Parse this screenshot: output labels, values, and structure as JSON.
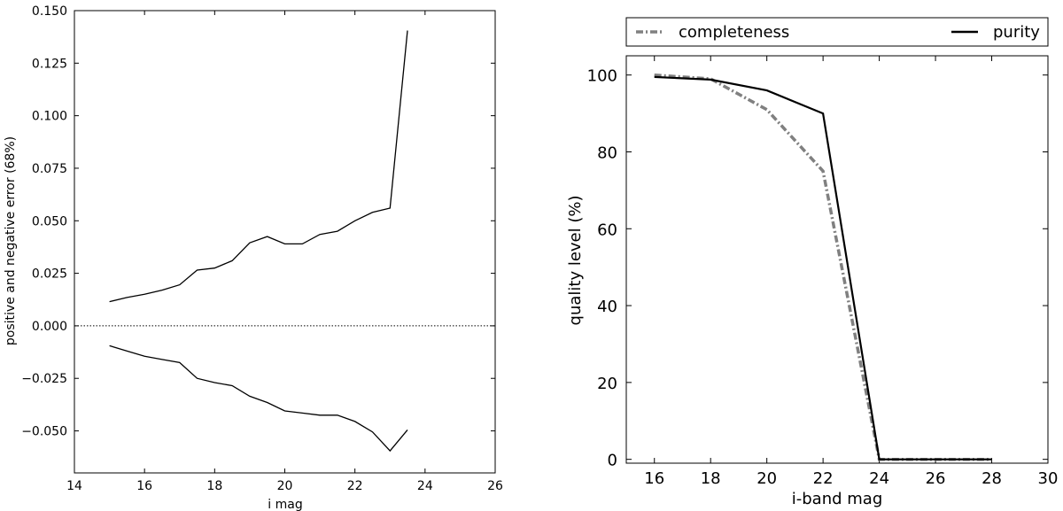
{
  "chart_data": [
    {
      "type": "line",
      "title": "",
      "xlabel": "i mag",
      "ylabel": "positive and negative error (68%)",
      "xlim": [
        14,
        26
      ],
      "ylim": [
        -0.07,
        0.15
      ],
      "xticks": [
        "14",
        "16",
        "18",
        "20",
        "22",
        "24",
        "26"
      ],
      "yticks": [
        "0.150",
        "0.125",
        "0.100",
        "0.075",
        "0.050",
        "0.025",
        "0.000",
        "−0.025",
        "−0.050"
      ],
      "grid": false,
      "reference_line": {
        "y": 0.0,
        "style": "dotted"
      },
      "series": [
        {
          "x": [
            15.0,
            15.5,
            16.0,
            16.5,
            17.0,
            17.5,
            18.0,
            18.5,
            19.0,
            19.5,
            20.0,
            20.5,
            21.0,
            21.5,
            22.0,
            22.5,
            23.0,
            23.5
          ],
          "values": [
            0.0115,
            0.0135,
            0.015,
            0.017,
            0.0195,
            0.0265,
            0.0275,
            0.031,
            0.0395,
            0.0425,
            0.039,
            0.039,
            0.0435,
            0.045,
            0.05,
            0.054,
            0.056,
            0.1405
          ],
          "color": "#000000"
        },
        {
          "x": [
            15.0,
            15.5,
            16.0,
            16.5,
            17.0,
            17.5,
            18.0,
            18.5,
            19.0,
            19.5,
            20.0,
            20.5,
            21.0,
            21.5,
            22.0,
            22.5,
            23.0,
            23.5
          ],
          "values": [
            -0.0095,
            -0.012,
            -0.0145,
            -0.016,
            -0.0175,
            -0.025,
            -0.027,
            -0.0285,
            -0.0335,
            -0.0365,
            -0.0405,
            -0.0415,
            -0.0425,
            -0.0425,
            -0.0455,
            -0.0505,
            -0.0595,
            -0.0495
          ],
          "color": "#000000"
        }
      ]
    },
    {
      "type": "line",
      "title": "",
      "xlabel": "i-band mag",
      "ylabel": "quality level (%)",
      "xlim": [
        15,
        30
      ],
      "ylim": [
        -1,
        105
      ],
      "xticks": [
        "16",
        "18",
        "20",
        "22",
        "24",
        "26",
        "28",
        "30"
      ],
      "yticks": [
        "0",
        "20",
        "40",
        "60",
        "80",
        "100"
      ],
      "grid": false,
      "legend": {
        "placement": "above plot",
        "ncol": 2
      },
      "x": [
        16,
        18,
        20,
        22,
        24,
        26,
        28
      ],
      "series": [
        {
          "name": "completeness",
          "values": [
            100,
            99,
            91,
            75,
            0,
            0,
            0
          ],
          "color": "#808080",
          "style": "dash-dot"
        },
        {
          "name": "purity",
          "values": [
            99.5,
            98.8,
            96,
            90,
            0,
            0,
            0
          ],
          "color": "#000000",
          "style": "solid"
        }
      ]
    }
  ]
}
